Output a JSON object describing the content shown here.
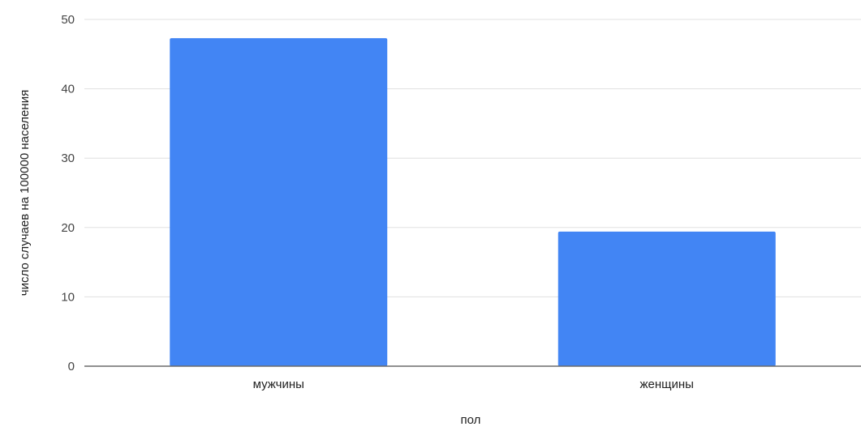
{
  "chart_data": {
    "type": "bar",
    "categories": [
      "мужчины",
      "женщины"
    ],
    "values": [
      47.3,
      19.4
    ],
    "xlabel": "пол",
    "ylabel": "число случаев на 100000 населения",
    "ylim": [
      0,
      50
    ],
    "yticks": [
      0,
      10,
      20,
      30,
      40,
      50
    ],
    "grid": true,
    "legend": "none",
    "bar_color": "#4285f4",
    "grid_color": "#e0e0e0",
    "axis_color": "#6b6b6b"
  }
}
